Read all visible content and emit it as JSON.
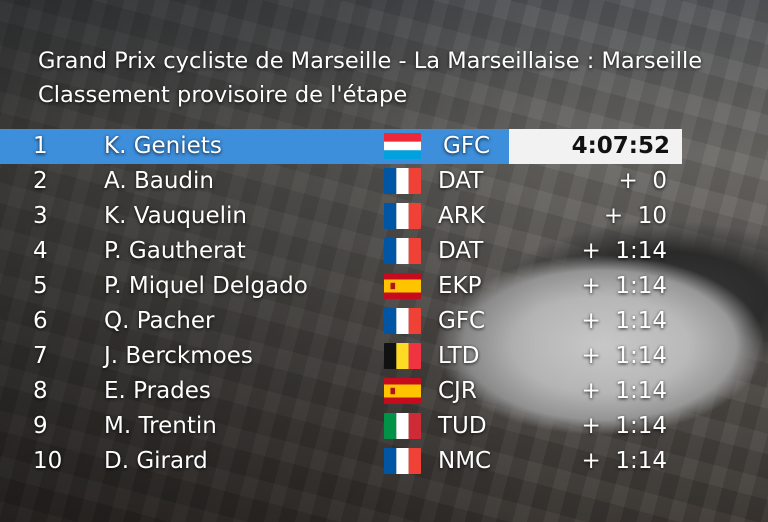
{
  "header": {
    "title": "Grand Prix cycliste de Marseille - La Marseillaise : Marseille",
    "subtitle": "Classement provisoire de l'étape"
  },
  "colors": {
    "leader_row": "#3d8edb",
    "leader_time_bg": "#f2f2f2"
  },
  "rows": [
    {
      "pos": "1",
      "name": "K. Geniets",
      "flag": "luxembourg-flag",
      "team": "GFC",
      "time": "4:07:52"
    },
    {
      "pos": "2",
      "name": "A. Baudin",
      "flag": "france-flag",
      "team": "DAT",
      "time": "+  0"
    },
    {
      "pos": "3",
      "name": "K. Vauquelin",
      "flag": "france-flag",
      "team": "ARK",
      "time": "+  10"
    },
    {
      "pos": "4",
      "name": "P. Gautherat",
      "flag": "france-flag",
      "team": "DAT",
      "time": "+  1:14"
    },
    {
      "pos": "5",
      "name": "P. Miquel Delgado",
      "flag": "spain-flag",
      "team": "EKP",
      "time": "+  1:14"
    },
    {
      "pos": "6",
      "name": "Q. Pacher",
      "flag": "france-flag",
      "team": "GFC",
      "time": "+  1:14"
    },
    {
      "pos": "7",
      "name": "J. Berckmoes",
      "flag": "belgium-flag",
      "team": "LTD",
      "time": "+  1:14"
    },
    {
      "pos": "8",
      "name": "E. Prades",
      "flag": "spain-flag",
      "team": "CJR",
      "time": "+  1:14"
    },
    {
      "pos": "9",
      "name": "M. Trentin",
      "flag": "italy-flag",
      "team": "TUD",
      "time": "+  1:14"
    },
    {
      "pos": "10",
      "name": "D. Girard",
      "flag": "france-flag",
      "team": "NMC",
      "time": "+  1:14"
    }
  ]
}
